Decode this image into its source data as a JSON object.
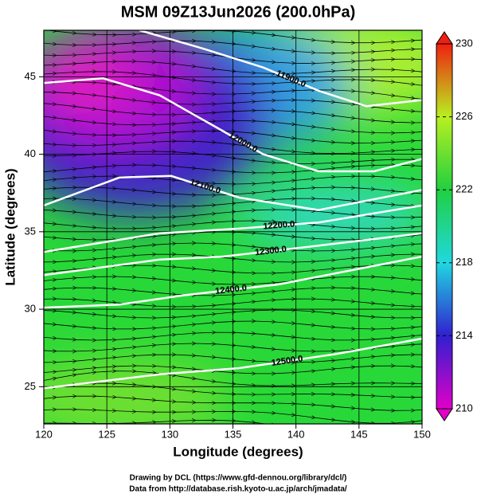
{
  "chart_data": {
    "type": "map",
    "title": "MSM 09Z13Jun2026 (200.0hPa)",
    "x_label": "Longitude (degrees)",
    "y_label": "Latitude  (degrees)",
    "xlim": [
      120,
      150
    ],
    "ylim": [
      22.6,
      48
    ],
    "xticks": [
      120,
      125,
      130,
      135,
      140,
      145,
      150
    ],
    "yticks": [
      25,
      30,
      35,
      40,
      45
    ],
    "grid": true,
    "colorbar": {
      "lim": [
        210,
        230
      ],
      "ticks": [
        210,
        214,
        218,
        222,
        226,
        230
      ],
      "colors": [
        "#e000c8",
        "#3020d0",
        "#20d8e0",
        "#20d040",
        "#b8f020",
        "#f02010"
      ]
    },
    "contours": [
      {
        "level": {
          "value": 11900,
          "label": "11900.0"
        },
        "x": [
          127.6,
          132.3,
          137.4,
          141.8,
          145.6,
          150
        ],
        "y": [
          48,
          46.9,
          45.6,
          44.1,
          43.1,
          43.5
        ]
      },
      {
        "level": {
          "value": 12000,
          "label": "12000.0"
        },
        "x": [
          120,
          124.7,
          129.2,
          134.2,
          137.4,
          141.8,
          146.2,
          150
        ],
        "y": [
          44.6,
          44.9,
          43.8,
          41.5,
          40,
          38.9,
          38.9,
          39.7
        ]
      },
      {
        "level": {
          "value": 12100,
          "label": "12100.0"
        },
        "x": [
          120,
          126,
          130.1,
          135.5,
          141.8,
          150
        ],
        "y": [
          36.7,
          38.5,
          38.6,
          37.2,
          36.4,
          37.7
        ]
      },
      {
        "level": {
          "value": 12200,
          "label": "12200.0"
        },
        "x": [
          120,
          129.2,
          135.5,
          141.8,
          150
        ],
        "y": [
          33.7,
          34.9,
          35.2,
          35.6,
          36.7
        ]
      },
      {
        "level": {
          "value": 12300,
          "label": "12300.0"
        },
        "x": [
          120,
          129.2,
          134.2,
          141.8,
          150
        ],
        "y": [
          32.2,
          33.2,
          33.4,
          34.1,
          34.9
        ]
      },
      {
        "level": {
          "value": 12400,
          "label": "12400.0"
        },
        "x": [
          120,
          126,
          131.1,
          138.6,
          150
        ],
        "y": [
          30.1,
          30.3,
          30.9,
          31.6,
          33.4
        ]
      },
      {
        "level": {
          "value": 12500,
          "label": "12500.0"
        },
        "x": [
          120,
          129.2,
          135.5,
          143.1,
          150
        ],
        "y": [
          24.9,
          25.8,
          26.2,
          27.1,
          28.1
        ]
      }
    ],
    "footer": [
      "Drawing by DCL (https://www.gfd-dennou.org/library/dcl/)",
      "Data from http://database.rish.kyoto-u.ac.jp/arch/jmadata/"
    ]
  }
}
